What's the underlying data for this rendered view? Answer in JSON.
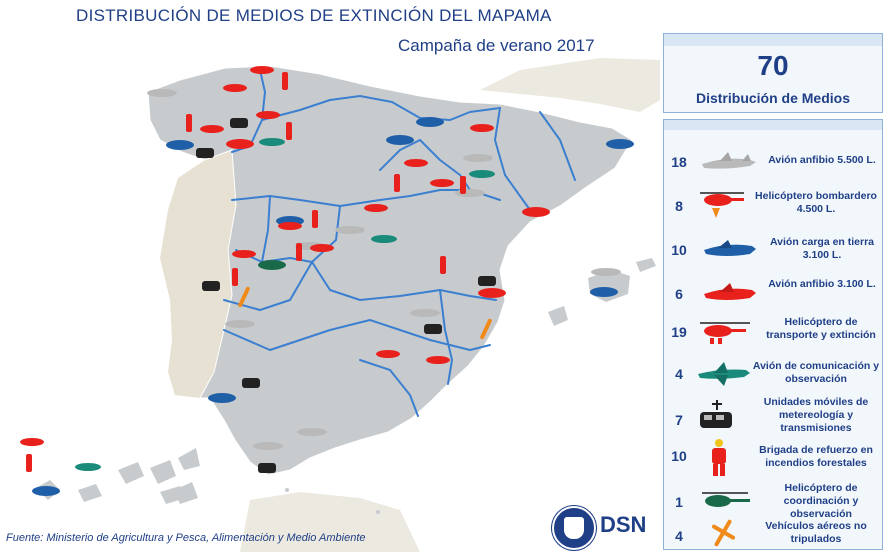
{
  "title": "DISTRIBUCIÓN DE MEDIOS DE EXTINCIÓN DEL MAPAMA",
  "subtitle": "Campaña de verano 2017",
  "summary": {
    "total": "70",
    "label": "Distribución de Medios"
  },
  "legend": [
    {
      "count": "18",
      "label": "Avión anfibio 5.500 L.",
      "icon": "amphibious-plane-icon",
      "color": "#b9b9b9"
    },
    {
      "count": "8",
      "label": "Helicóptero bombardero 4.500 L.",
      "icon": "bomber-helicopter-icon",
      "color": "#e8211d"
    },
    {
      "count": "10",
      "label": "Avión carga en tierra 3.100 L.",
      "icon": "ground-load-plane-icon",
      "color": "#1f5fa8"
    },
    {
      "count": "6",
      "label": "Avión anfibio 3.100 L.",
      "icon": "small-amphibious-plane-icon",
      "color": "#e8211d"
    },
    {
      "count": "19",
      "label": "Helicóptero de transporte y extinción",
      "icon": "transport-helicopter-icon",
      "color": "#e8211d"
    },
    {
      "count": "4",
      "label": "Avión de comunicación y observación",
      "icon": "observation-plane-icon",
      "color": "#1a8a7a"
    },
    {
      "count": "7",
      "label": "Unidades móviles de metereología y transmisiones",
      "icon": "mobile-unit-icon",
      "color": "#222222"
    },
    {
      "count": "10",
      "label": "Brigada de refuerzo en incendios forestales",
      "icon": "brigade-icon",
      "color": "#e8211d"
    },
    {
      "count": "1",
      "label": "Helicóptero de coordinación y observación",
      "icon": "coordination-helicopter-icon",
      "color": "#1a6a4a"
    },
    {
      "count": "4",
      "label": "Vehículos aéreos no tripulados",
      "icon": "drone-icon",
      "color": "#f08a1a"
    }
  ],
  "source": "Fuente: Ministerio de Agricultura y Pesca, Alimentación y Medio Ambiente",
  "logo": {
    "text": "DSN"
  },
  "colors": {
    "land": "#c8cbce",
    "neighbor": "#e6e1d2",
    "border": "#3b7fd0",
    "sea": "#ffffff",
    "text": "#1f3f86"
  }
}
